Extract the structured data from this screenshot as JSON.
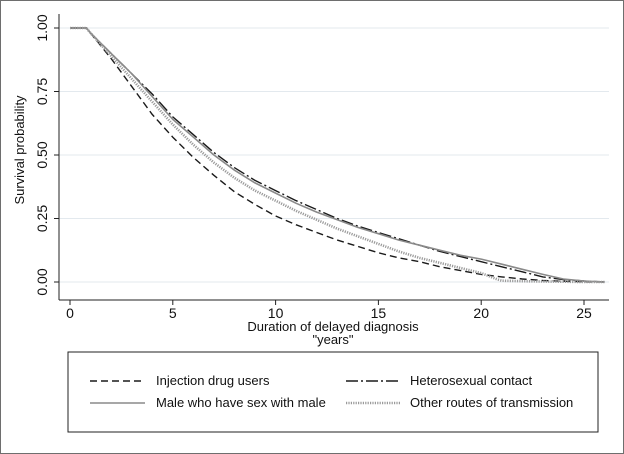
{
  "chart_data": {
    "type": "line",
    "title": "",
    "xlabel": "Duration of delayed diagnosis",
    "xlabel_line2": "\"years\"",
    "ylabel": "Survival probability",
    "xlim": [
      0,
      26
    ],
    "ylim": [
      0,
      1
    ],
    "x_ticks": [
      0,
      5,
      10,
      15,
      20,
      25
    ],
    "x_tick_labels": [
      "0",
      "5",
      "10",
      "15",
      "20",
      "25"
    ],
    "y_ticks": [
      0,
      0.25,
      0.5,
      0.75,
      1
    ],
    "y_tick_labels": [
      "0.00",
      "0.25",
      "0.50",
      "0.75",
      "1.00"
    ],
    "grid": true,
    "legend_position": "bottom",
    "series": [
      {
        "name": "Injection drug users",
        "style": "dashed",
        "x": [
          0,
          0.8,
          1,
          2,
          3,
          4,
          5,
          6,
          7,
          8,
          9,
          10,
          11,
          12,
          13,
          14,
          15,
          16,
          17,
          18,
          19,
          20,
          21,
          22,
          23,
          24,
          25,
          26
        ],
        "y": [
          1.0,
          1.0,
          0.98,
          0.88,
          0.77,
          0.66,
          0.57,
          0.49,
          0.42,
          0.355,
          0.305,
          0.26,
          0.225,
          0.195,
          0.165,
          0.14,
          0.115,
          0.095,
          0.08,
          0.06,
          0.045,
          0.03,
          0.02,
          0.012,
          0.006,
          0.003,
          0.001,
          0.0
        ]
      },
      {
        "name": "Heterosexual contact",
        "style": "longdash-dot",
        "x": [
          0,
          0.8,
          1,
          2,
          3,
          4,
          5,
          6,
          7,
          8,
          9,
          10,
          11,
          12,
          13,
          14,
          15,
          16,
          17,
          18,
          19,
          20,
          21,
          22,
          23,
          24,
          25,
          26
        ],
        "y": [
          1.0,
          1.0,
          0.98,
          0.9,
          0.82,
          0.74,
          0.65,
          0.58,
          0.51,
          0.45,
          0.4,
          0.36,
          0.32,
          0.285,
          0.25,
          0.22,
          0.195,
          0.17,
          0.145,
          0.12,
          0.1,
          0.08,
          0.06,
          0.04,
          0.02,
          0.01,
          0.004,
          0.0
        ]
      },
      {
        "name": "Male who have sex with male",
        "style": "solid-gray",
        "x": [
          0,
          0.8,
          1,
          2,
          3,
          4,
          5,
          6,
          7,
          8,
          9,
          10,
          11,
          12,
          13,
          14,
          15,
          16,
          17,
          18,
          19,
          20,
          21,
          22,
          23,
          24,
          25,
          26
        ],
        "y": [
          1.0,
          1.0,
          0.98,
          0.9,
          0.82,
          0.73,
          0.64,
          0.57,
          0.5,
          0.44,
          0.39,
          0.35,
          0.31,
          0.275,
          0.245,
          0.215,
          0.19,
          0.165,
          0.145,
          0.125,
          0.105,
          0.09,
          0.07,
          0.05,
          0.03,
          0.012,
          0.004,
          0.0
        ]
      },
      {
        "name": "Other routes of transmission",
        "style": "dotted-gray",
        "x": [
          0,
          0.8,
          1,
          2,
          3,
          4,
          5,
          6,
          7,
          8,
          9,
          10,
          11,
          12,
          13,
          14,
          15,
          16,
          17,
          18,
          19,
          20,
          20.8,
          21,
          22,
          23,
          24,
          25,
          26
        ],
        "y": [
          1.0,
          1.0,
          0.98,
          0.89,
          0.8,
          0.71,
          0.62,
          0.54,
          0.47,
          0.41,
          0.36,
          0.32,
          0.28,
          0.245,
          0.21,
          0.18,
          0.15,
          0.12,
          0.095,
          0.075,
          0.055,
          0.035,
          0.01,
          0.005,
          0.003,
          0.002,
          0.001,
          0.0,
          0.0
        ]
      }
    ]
  }
}
